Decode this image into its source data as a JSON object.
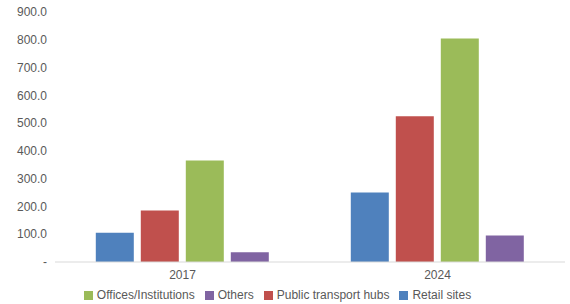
{
  "chart_data": {
    "type": "bar",
    "categories": [
      "2017",
      "2024"
    ],
    "series": [
      {
        "name": "Retail sites",
        "color": "#4f81bd",
        "values": [
          105,
          250
        ]
      },
      {
        "name": "Public transport hubs",
        "color": "#c0504d",
        "values": [
          185,
          525
        ]
      },
      {
        "name": "Offices/Institutions",
        "color": "#9bbb59",
        "values": [
          365,
          805
        ]
      },
      {
        "name": "Others",
        "color": "#8064a2",
        "values": [
          35,
          95
        ]
      }
    ],
    "ylim": [
      0,
      900
    ],
    "yticks": [
      {
        "value": 0,
        "label": "-"
      },
      {
        "value": 100,
        "label": "100.0"
      },
      {
        "value": 200,
        "label": "200.0"
      },
      {
        "value": 300,
        "label": "300.0"
      },
      {
        "value": 400,
        "label": "400.0"
      },
      {
        "value": 500,
        "label": "500.0"
      },
      {
        "value": 600,
        "label": "600.0"
      },
      {
        "value": 700,
        "label": "700.0"
      },
      {
        "value": 800,
        "label": "800.0"
      },
      {
        "value": 900,
        "label": "900.0"
      }
    ],
    "grid": false,
    "legend": "bottom"
  }
}
